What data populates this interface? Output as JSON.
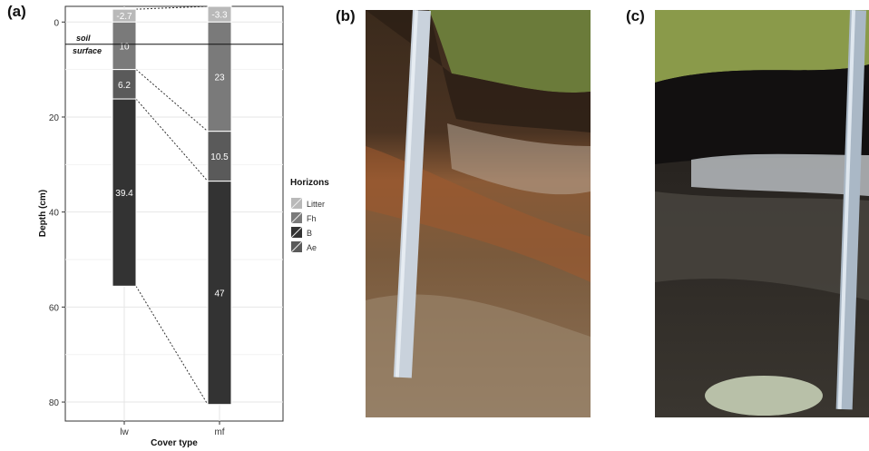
{
  "panels": {
    "a": "(a)",
    "b": "(b)",
    "c": "(c)"
  },
  "chart_data": {
    "type": "bar",
    "stacked": true,
    "categories": [
      "lw",
      "mf"
    ],
    "xlabel": "Cover type",
    "ylabel": "Depth (cm)",
    "ylim": [
      -3.3,
      84
    ],
    "y_reversed": true,
    "yticks": [
      0,
      20,
      40,
      60,
      80
    ],
    "grid": true,
    "reference_line": {
      "y": 0,
      "label_line1": "soil",
      "label_line2": "surface"
    },
    "legend": {
      "title": "Horizons",
      "position": "right",
      "items": [
        "Litter",
        "Fh",
        "B",
        "Ae"
      ]
    },
    "series": [
      {
        "name": "Litter",
        "color": "#b9b9b9",
        "values": [
          -2.7,
          -3.3
        ],
        "labels": [
          "-2.7",
          "-3.3"
        ]
      },
      {
        "name": "Fh",
        "color": "#7a7a7a",
        "values": [
          10,
          23
        ],
        "labels": [
          "10",
          "23"
        ]
      },
      {
        "name": "Ae",
        "color": "#5a5a5a",
        "values": [
          6.2,
          10.5
        ],
        "labels": [
          "6.2",
          "10.5"
        ]
      },
      {
        "name": "B",
        "color": "#333333",
        "values": [
          39.4,
          47
        ],
        "labels": [
          "39.4",
          "47"
        ]
      }
    ],
    "connectors_between_boundaries": true
  },
  "colors": {
    "plot_bg": "#ffffff",
    "grid": "#e6e6e6",
    "legend_litter": "#b9b9b9",
    "legend_fh": "#7a7a7a",
    "legend_b": "#333333",
    "legend_ae": "#5a5a5a"
  }
}
